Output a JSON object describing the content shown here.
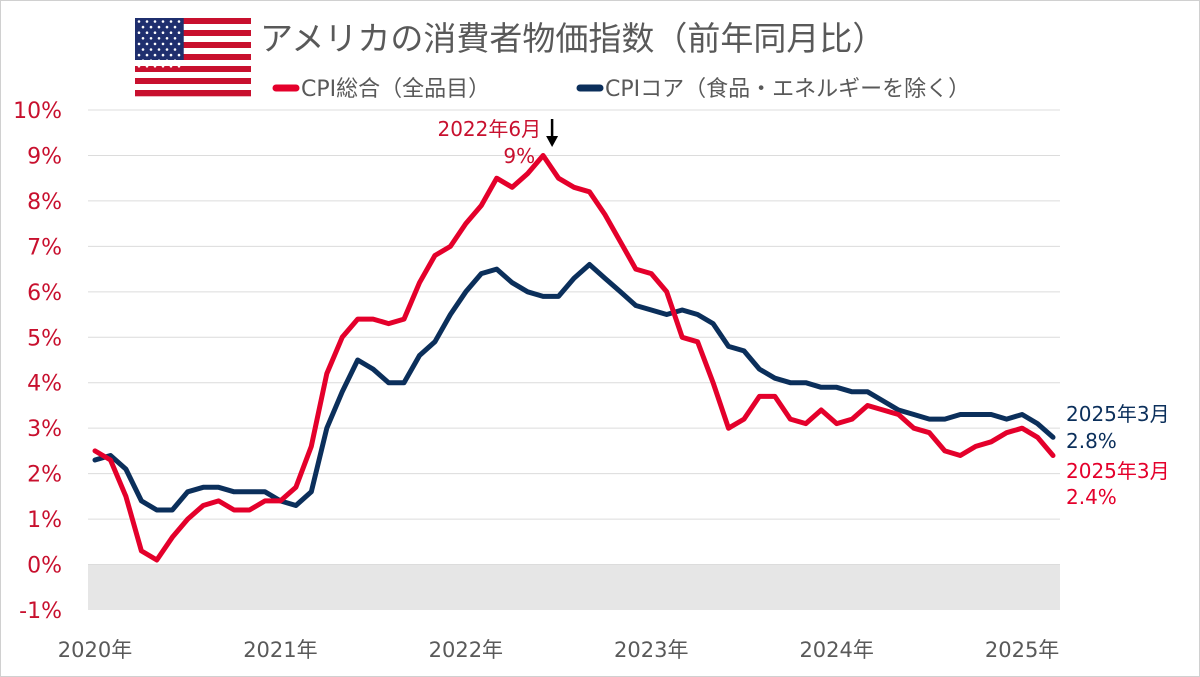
{
  "chart_data": {
    "type": "line",
    "title": "アメリカの消費者物価指数（前年同月比）",
    "colors": {
      "cpi_total": "#e4002b",
      "cpi_core": "#0b2f5b",
      "axis_text": "#c8102e",
      "title_text": "#595959"
    },
    "legend": {
      "placement": "top",
      "items": [
        {
          "label": "CPI総合（全品目）",
          "series": "cpi_total"
        },
        {
          "label": "CPIコア（食品・エネルギーを除く）",
          "series": "cpi_core"
        }
      ]
    },
    "y_axis": {
      "ylim": [
        -1,
        10
      ],
      "ticks": [
        "10%",
        "9%",
        "8%",
        "7%",
        "6%",
        "5%",
        "4%",
        "3%",
        "2%",
        "1%",
        "0%",
        "-1%"
      ],
      "grid": true,
      "negative_region_shaded": true
    },
    "x_axis": {
      "ticks": [
        "2020年",
        "2021年",
        "2022年",
        "2023年",
        "2024年",
        "2025年"
      ],
      "range": [
        "2020-01",
        "2025-03"
      ]
    },
    "x": [
      "2020-01",
      "2020-02",
      "2020-03",
      "2020-04",
      "2020-05",
      "2020-06",
      "2020-07",
      "2020-08",
      "2020-09",
      "2020-10",
      "2020-11",
      "2020-12",
      "2021-01",
      "2021-02",
      "2021-03",
      "2021-04",
      "2021-05",
      "2021-06",
      "2021-07",
      "2021-08",
      "2021-09",
      "2021-10",
      "2021-11",
      "2021-12",
      "2022-01",
      "2022-02",
      "2022-03",
      "2022-04",
      "2022-05",
      "2022-06",
      "2022-07",
      "2022-08",
      "2022-09",
      "2022-10",
      "2022-11",
      "2022-12",
      "2023-01",
      "2023-02",
      "2023-03",
      "2023-04",
      "2023-05",
      "2023-06",
      "2023-07",
      "2023-08",
      "2023-09",
      "2023-10",
      "2023-11",
      "2023-12",
      "2024-01",
      "2024-02",
      "2024-03",
      "2024-04",
      "2024-05",
      "2024-06",
      "2024-07",
      "2024-08",
      "2024-09",
      "2024-10",
      "2024-11",
      "2024-12",
      "2025-01",
      "2025-02",
      "2025-03"
    ],
    "series": [
      {
        "name": "CPI総合（全品目）",
        "key": "cpi_total",
        "values": [
          2.5,
          2.3,
          1.5,
          0.3,
          0.1,
          0.6,
          1.0,
          1.3,
          1.4,
          1.2,
          1.2,
          1.4,
          1.4,
          1.7,
          2.6,
          4.2,
          5.0,
          5.4,
          5.4,
          5.3,
          5.4,
          6.2,
          6.8,
          7.0,
          7.5,
          7.9,
          8.5,
          8.3,
          8.6,
          9.0,
          8.5,
          8.3,
          8.2,
          7.7,
          7.1,
          6.5,
          6.4,
          6.0,
          5.0,
          4.9,
          4.0,
          3.0,
          3.2,
          3.7,
          3.7,
          3.2,
          3.1,
          3.4,
          3.1,
          3.2,
          3.5,
          3.4,
          3.3,
          3.0,
          2.9,
          2.5,
          2.4,
          2.6,
          2.7,
          2.9,
          3.0,
          2.8,
          2.4
        ]
      },
      {
        "name": "CPIコア（食品・エネルギーを除く）",
        "key": "cpi_core",
        "values": [
          2.3,
          2.4,
          2.1,
          1.4,
          1.2,
          1.2,
          1.6,
          1.7,
          1.7,
          1.6,
          1.6,
          1.6,
          1.4,
          1.3,
          1.6,
          3.0,
          3.8,
          4.5,
          4.3,
          4.0,
          4.0,
          4.6,
          4.9,
          5.5,
          6.0,
          6.4,
          6.5,
          6.2,
          6.0,
          5.9,
          5.9,
          6.3,
          6.6,
          6.3,
          6.0,
          5.7,
          5.6,
          5.5,
          5.6,
          5.5,
          5.3,
          4.8,
          4.7,
          4.3,
          4.1,
          4.0,
          4.0,
          3.9,
          3.9,
          3.8,
          3.8,
          3.6,
          3.4,
          3.3,
          3.2,
          3.2,
          3.3,
          3.3,
          3.3,
          3.2,
          3.3,
          3.1,
          2.8
        ]
      }
    ],
    "annotations": [
      {
        "key": "peak",
        "label": "2022年6月",
        "value_label": "9%",
        "series": "cpi_total",
        "x": "2022-06",
        "y": 9.0,
        "arrow": true
      },
      {
        "key": "core_end",
        "label": "2025年3月",
        "value_label": "2.8%",
        "series": "cpi_core",
        "x": "2025-03",
        "y": 2.8
      },
      {
        "key": "total_end",
        "label": "2025年3月",
        "value_label": "2.4%",
        "series": "cpi_total",
        "x": "2025-03",
        "y": 2.4
      }
    ]
  }
}
